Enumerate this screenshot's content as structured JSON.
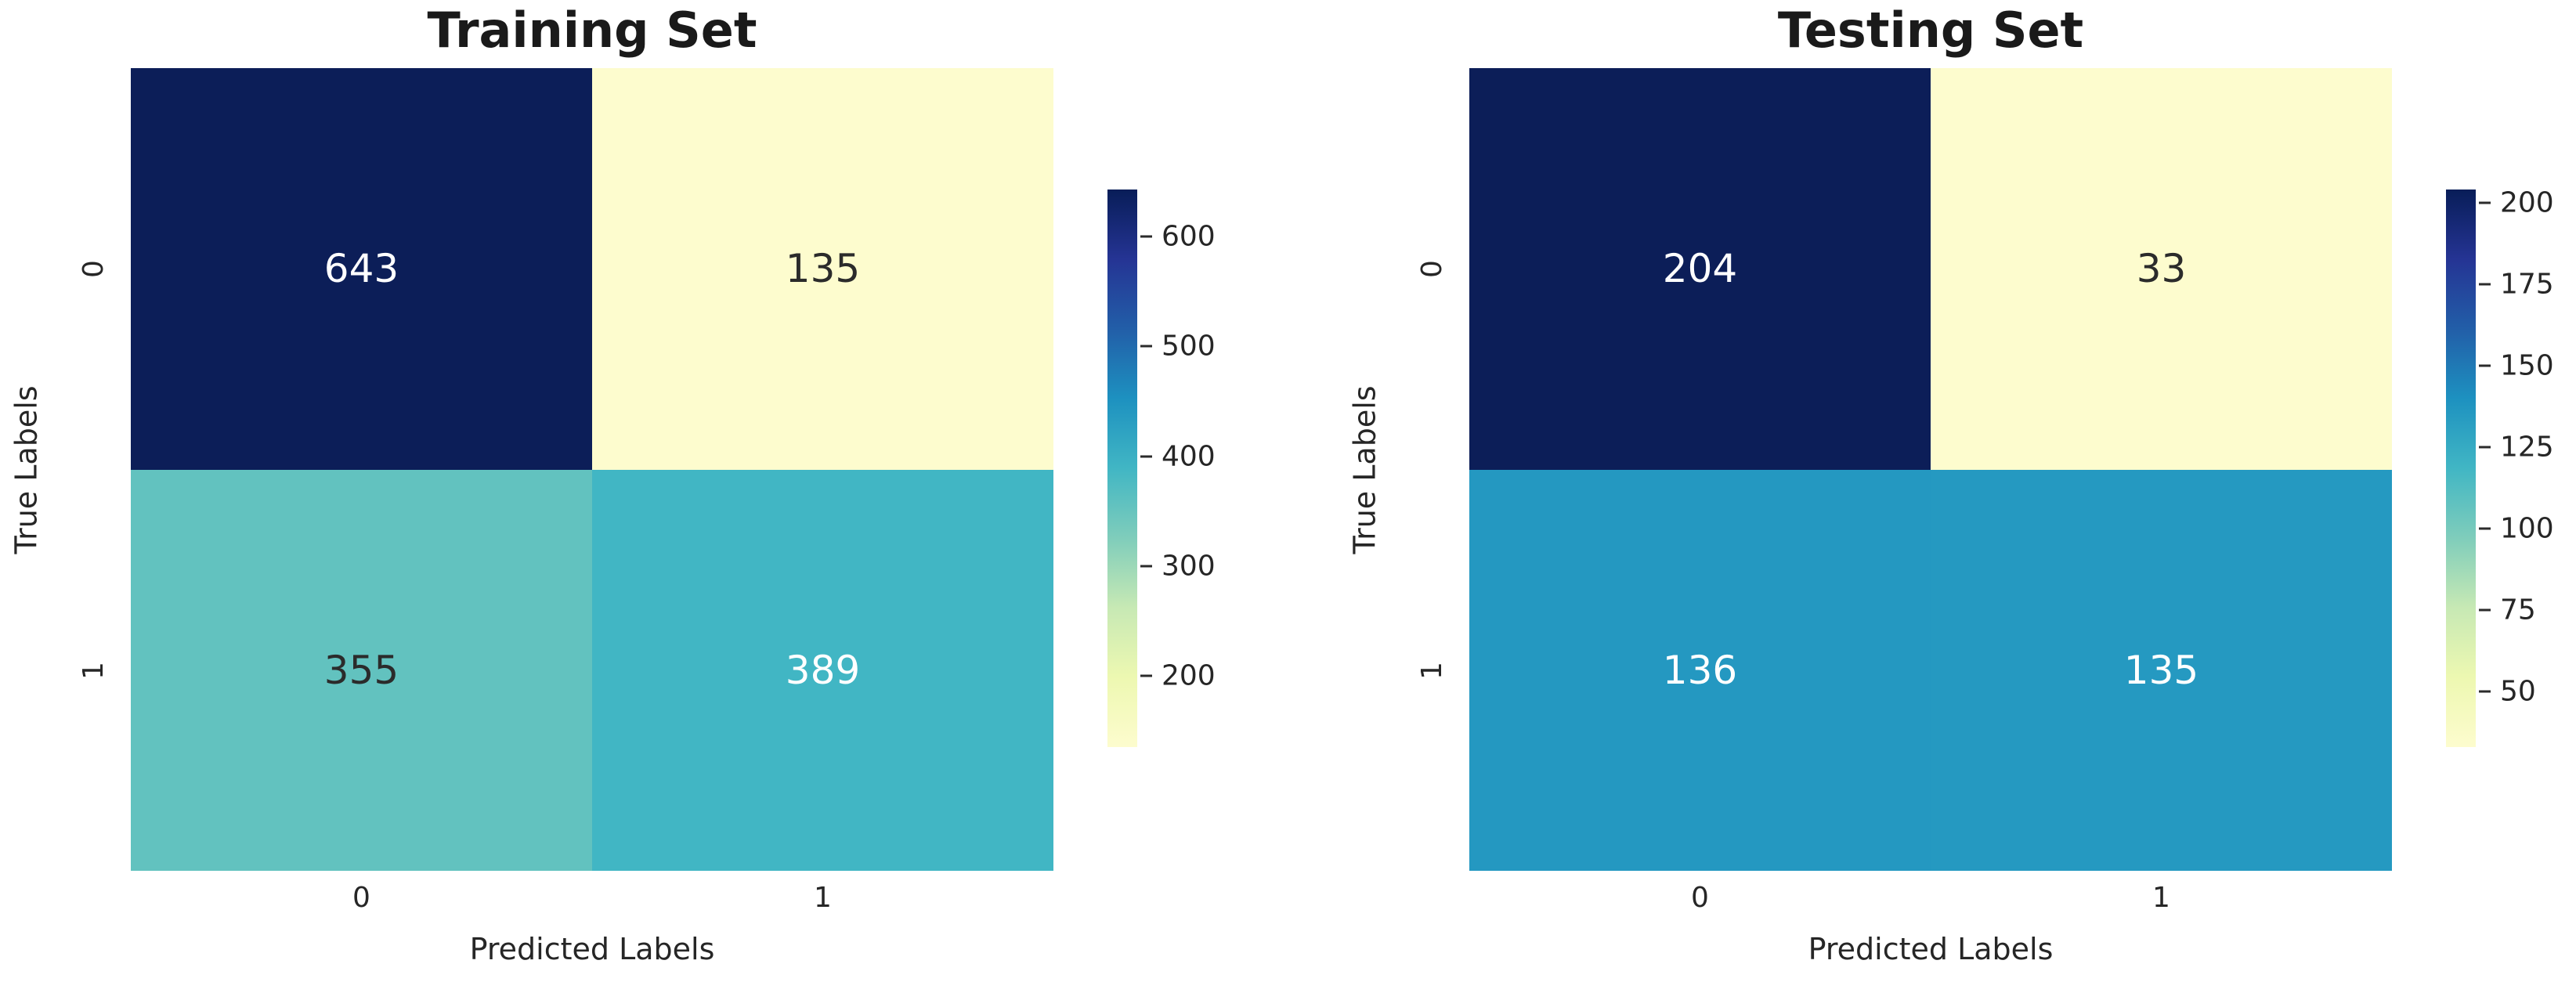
{
  "figure": {
    "background": "#ffffff",
    "text_color": "#262626",
    "title_color": "#1a1a1a"
  },
  "colormap_stops": [
    "#081d58",
    "#253494",
    "#225ea8",
    "#1d91c0",
    "#41b6c4",
    "#7fcdbb",
    "#c7e9b4",
    "#edf8b1",
    "#fdfcce"
  ],
  "chart_data": [
    {
      "type": "heatmap",
      "title": "Training Set",
      "xlabel": "Predicted Labels",
      "ylabel": "True Labels",
      "colormap": "YlGnBu",
      "x_ticklabels": [
        "0",
        "1"
      ],
      "y_ticklabels": [
        "0",
        "1"
      ],
      "matrix": [
        [
          643,
          135
        ],
        [
          355,
          389
        ]
      ],
      "vmin": 135,
      "vmax": 643,
      "legend_position": "right-colorbar",
      "cells": [
        {
          "value": "643",
          "bg": "#0c1e58",
          "fg": "#ffffff"
        },
        {
          "value": "135",
          "bg": "#fdfcce",
          "fg": "#2b2b2b"
        },
        {
          "value": "355",
          "bg": "#62c2bf",
          "fg": "#2b2b2b"
        },
        {
          "value": "389",
          "bg": "#41b6c4",
          "fg": "#ffffff"
        }
      ],
      "colorbar_ticks": [
        {
          "label": "600",
          "top": "8.46%"
        },
        {
          "label": "500",
          "top": "28.15%"
        },
        {
          "label": "400",
          "top": "47.83%"
        },
        {
          "label": "300",
          "top": "67.52%"
        },
        {
          "label": "200",
          "top": "87.20%"
        }
      ]
    },
    {
      "type": "heatmap",
      "title": "Testing Set",
      "xlabel": "Predicted Labels",
      "ylabel": "True Labels",
      "colormap": "YlGnBu",
      "x_ticklabels": [
        "0",
        "1"
      ],
      "y_ticklabels": [
        "0",
        "1"
      ],
      "matrix": [
        [
          204,
          33
        ],
        [
          136,
          135
        ]
      ],
      "vmin": 33,
      "vmax": 204,
      "legend_position": "right-colorbar",
      "cells": [
        {
          "value": "204",
          "bg": "#0c1e58",
          "fg": "#ffffff"
        },
        {
          "value": "33",
          "bg": "#fdfcce",
          "fg": "#2b2b2b"
        },
        {
          "value": "136",
          "bg": "#2498c1",
          "fg": "#ffffff"
        },
        {
          "value": "135",
          "bg": "#2599c1",
          "fg": "#ffffff"
        }
      ],
      "colorbar_ticks": [
        {
          "label": "200",
          "top": "2.34%"
        },
        {
          "label": "175",
          "top": "16.96%"
        },
        {
          "label": "150",
          "top": "31.58%"
        },
        {
          "label": "125",
          "top": "46.20%"
        },
        {
          "label": "100",
          "top": "60.82%"
        },
        {
          "label": "75",
          "top": "75.44%"
        },
        {
          "label": "50",
          "top": "90.06%"
        }
      ]
    }
  ]
}
